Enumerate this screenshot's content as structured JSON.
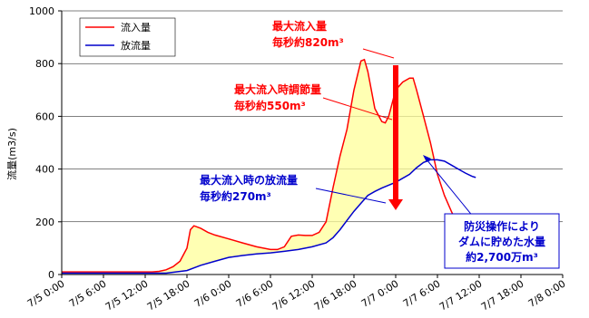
{
  "chart_data": {
    "type": "line",
    "ylabel": "流量(m3/s)",
    "ylim": [
      0,
      1000
    ],
    "yticks": [
      "0",
      "200",
      "400",
      "600",
      "800",
      "1000"
    ],
    "xticks": [
      "7/5 0:00",
      "7/5 6:00",
      "7/5 12:00",
      "7/5 18:00",
      "7/6 0:00",
      "7/6 6:00",
      "7/6 12:00",
      "7/6 18:00",
      "7/7 0:00",
      "7/7 6:00",
      "7/7 12:00",
      "7/7 18:00",
      "7/8 0:00"
    ],
    "x_hours_range": [
      0,
      72
    ],
    "series": [
      {
        "name": "流入量",
        "color": "#ff0000",
        "points": [
          [
            0,
            10
          ],
          [
            2,
            10
          ],
          [
            6,
            10
          ],
          [
            10,
            10
          ],
          [
            13,
            10
          ],
          [
            14,
            12
          ],
          [
            15,
            18
          ],
          [
            16,
            30
          ],
          [
            17,
            50
          ],
          [
            18,
            100
          ],
          [
            18.5,
            170
          ],
          [
            19,
            185
          ],
          [
            20,
            175
          ],
          [
            21,
            160
          ],
          [
            22,
            150
          ],
          [
            24,
            135
          ],
          [
            26,
            120
          ],
          [
            28,
            105
          ],
          [
            30,
            95
          ],
          [
            31,
            95
          ],
          [
            32,
            105
          ],
          [
            33,
            145
          ],
          [
            34,
            150
          ],
          [
            35,
            148
          ],
          [
            36,
            148
          ],
          [
            37,
            160
          ],
          [
            38,
            200
          ],
          [
            39,
            330
          ],
          [
            40,
            450
          ],
          [
            41,
            550
          ],
          [
            42,
            700
          ],
          [
            43,
            810
          ],
          [
            43.5,
            815
          ],
          [
            44,
            770
          ],
          [
            45,
            630
          ],
          [
            46,
            580
          ],
          [
            46.5,
            575
          ],
          [
            47,
            600
          ],
          [
            48,
            700
          ],
          [
            49,
            730
          ],
          [
            50,
            745
          ],
          [
            50.5,
            745
          ],
          [
            51,
            700
          ],
          [
            52,
            600
          ],
          [
            53,
            500
          ],
          [
            54,
            380
          ],
          [
            55,
            300
          ],
          [
            56,
            240
          ],
          [
            57,
            185
          ]
        ]
      },
      {
        "name": "放流量",
        "color": "#0000cc",
        "points": [
          [
            0,
            5
          ],
          [
            10,
            5
          ],
          [
            15,
            5
          ],
          [
            18,
            15
          ],
          [
            20,
            35
          ],
          [
            22,
            50
          ],
          [
            24,
            65
          ],
          [
            26,
            72
          ],
          [
            28,
            78
          ],
          [
            30,
            82
          ],
          [
            32,
            88
          ],
          [
            34,
            95
          ],
          [
            36,
            105
          ],
          [
            38,
            120
          ],
          [
            39,
            140
          ],
          [
            40,
            170
          ],
          [
            41,
            205
          ],
          [
            42,
            240
          ],
          [
            43,
            270
          ],
          [
            44,
            300
          ],
          [
            45,
            315
          ],
          [
            46,
            328
          ],
          [
            48,
            350
          ],
          [
            50,
            380
          ],
          [
            51,
            405
          ],
          [
            52,
            425
          ],
          [
            53,
            435
          ],
          [
            54,
            435
          ],
          [
            55,
            430
          ],
          [
            56,
            415
          ],
          [
            57,
            400
          ],
          [
            58,
            385
          ],
          [
            59,
            372
          ],
          [
            59.5,
            368
          ]
        ]
      }
    ]
  },
  "legend": {
    "inflow": "流入量",
    "outflow": "放流量"
  },
  "annotations": {
    "peak_l1": "最大流入量",
    "peak_l2": "毎秒約820m³",
    "cut_l1": "最大流入時調節量",
    "cut_l2": "毎秒約550m³",
    "rel_l1": "最大流入時の放流量",
    "rel_l2": "毎秒約270m³",
    "box_l1": "防災操作により",
    "box_l2": "ダムに貯めた水量",
    "box_l3": "約2,700万m³"
  }
}
